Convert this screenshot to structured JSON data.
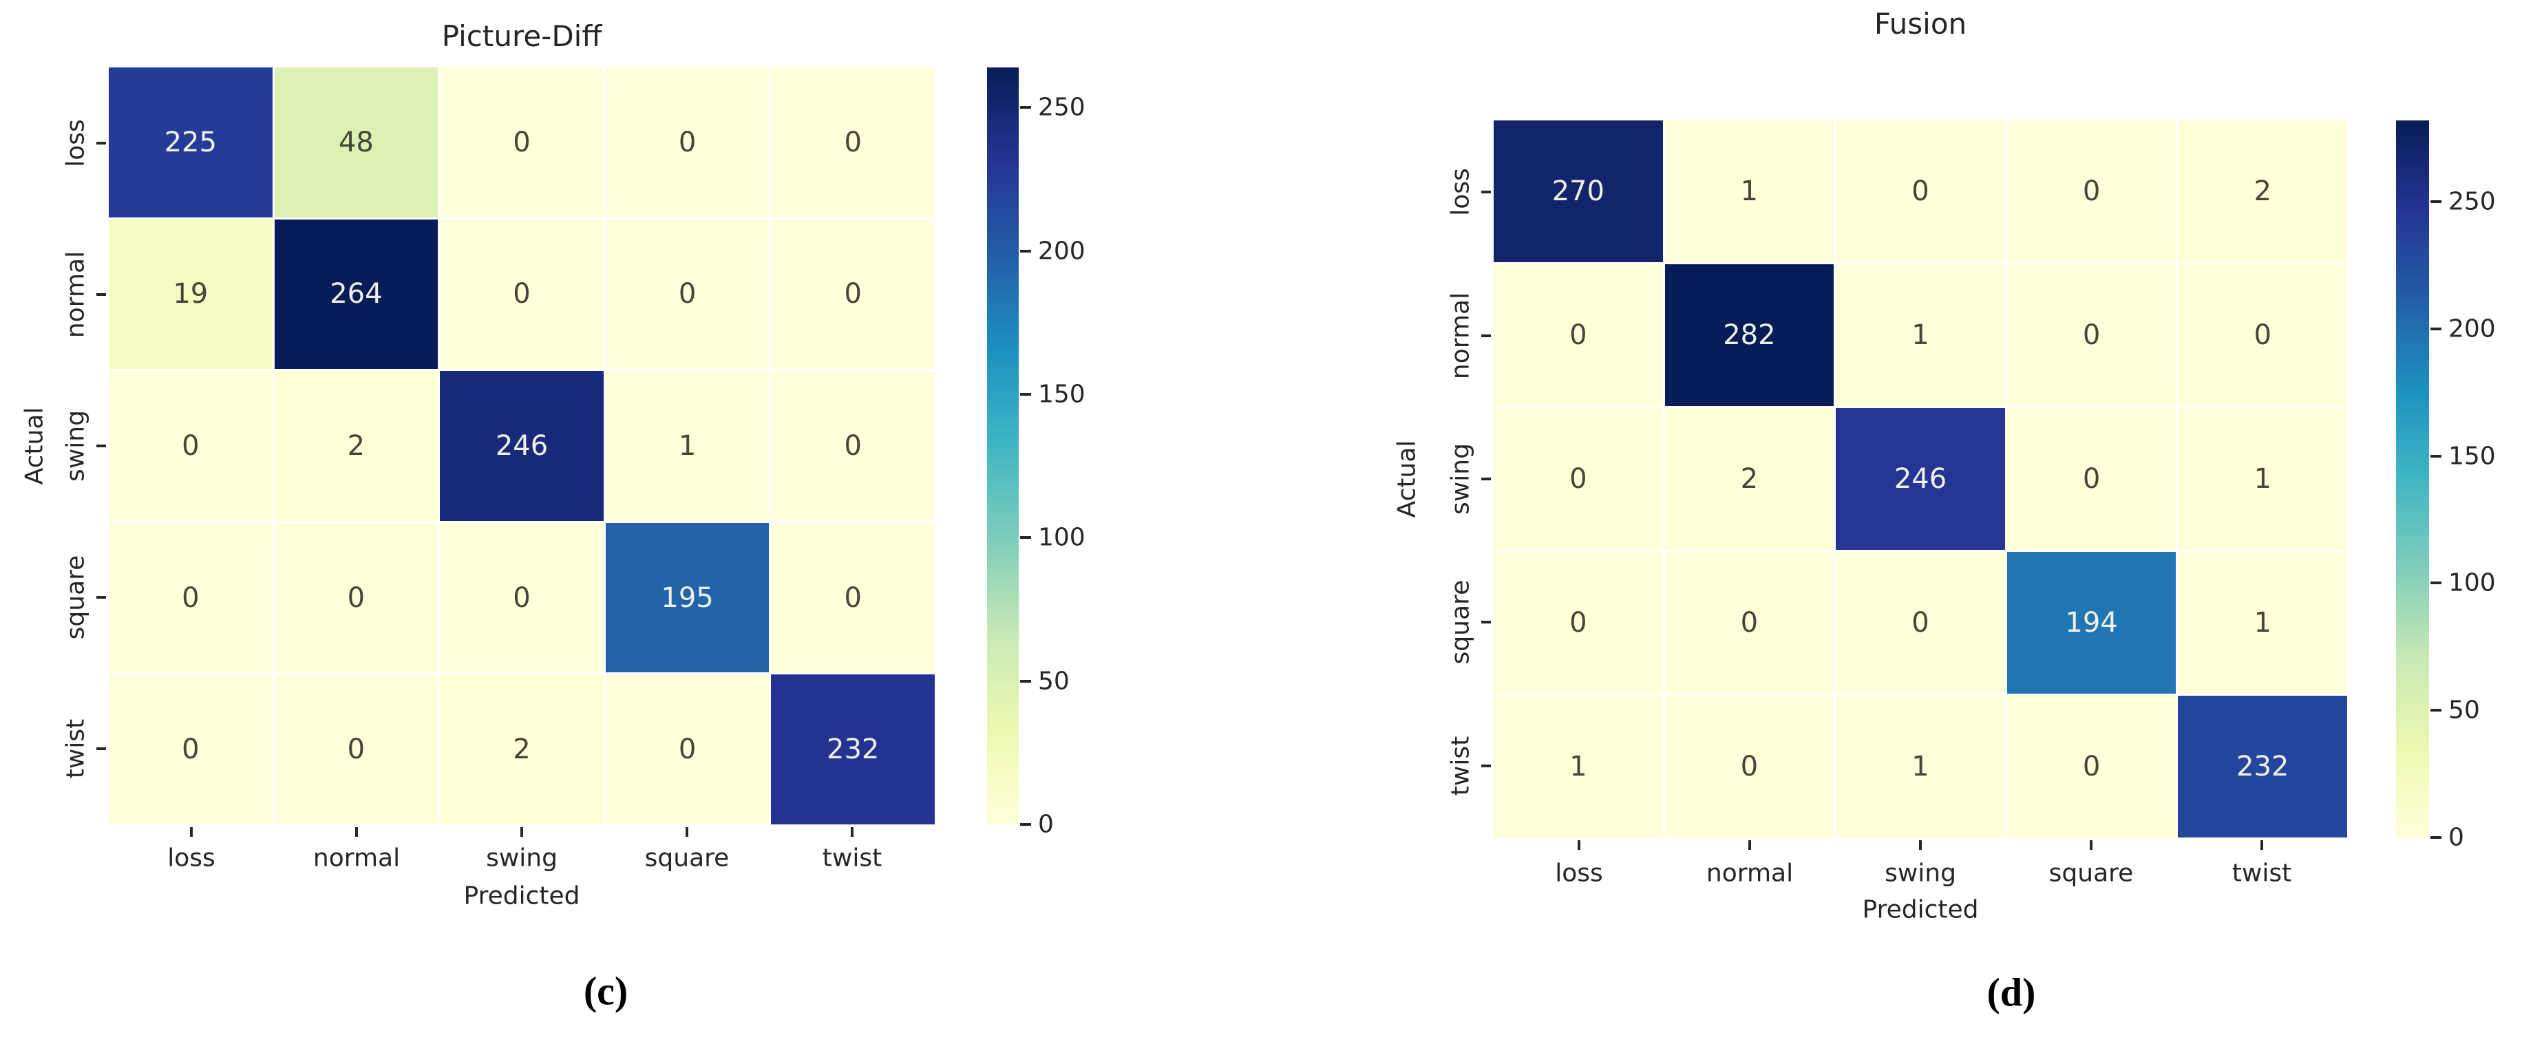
{
  "chart_data": [
    {
      "type": "heatmap",
      "title": "Picture-Diff",
      "caption": "(c)",
      "xlabel": "Predicted",
      "ylabel": "Actual",
      "x_categories": [
        "loss",
        "normal",
        "swing",
        "square",
        "twist"
      ],
      "y_categories": [
        "loss",
        "normal",
        "swing",
        "square",
        "twist"
      ],
      "values": [
        [
          225,
          48,
          0,
          0,
          0
        ],
        [
          19,
          264,
          0,
          0,
          0
        ],
        [
          0,
          2,
          246,
          1,
          0
        ],
        [
          0,
          0,
          0,
          195,
          0
        ],
        [
          0,
          0,
          2,
          0,
          232
        ]
      ],
      "vmin": 0,
      "vmax": 264,
      "colorbar_ticks": [
        0,
        50,
        100,
        150,
        200,
        250
      ],
      "colormap": "YlGnBu",
      "legend_position": "right-colorbar",
      "grid": false
    },
    {
      "type": "heatmap",
      "title": "Fusion",
      "caption": "(d)",
      "xlabel": "Predicted",
      "ylabel": "Actual",
      "x_categories": [
        "loss",
        "normal",
        "swing",
        "square",
        "twist"
      ],
      "y_categories": [
        "loss",
        "normal",
        "swing",
        "square",
        "twist"
      ],
      "values": [
        [
          270,
          1,
          0,
          0,
          2
        ],
        [
          0,
          282,
          1,
          0,
          0
        ],
        [
          0,
          2,
          246,
          0,
          1
        ],
        [
          0,
          0,
          0,
          194,
          1
        ],
        [
          1,
          0,
          1,
          0,
          232
        ]
      ],
      "vmin": 0,
      "vmax": 282,
      "colorbar_ticks": [
        0,
        50,
        100,
        150,
        200,
        250
      ],
      "colormap": "YlGnBu",
      "legend_position": "right-colorbar",
      "grid": false
    }
  ],
  "colors": {
    "colormap_anchors": [
      "#ffffd9",
      "#edf8b1",
      "#c7e9b4",
      "#7fcdbb",
      "#41b6c4",
      "#1d91c0",
      "#225ea8",
      "#253494",
      "#081d58"
    ],
    "background": "#ffffff",
    "tick_text": "#262626",
    "annot_dark_text": "#45453a",
    "annot_light_text": "#eef0ea"
  }
}
